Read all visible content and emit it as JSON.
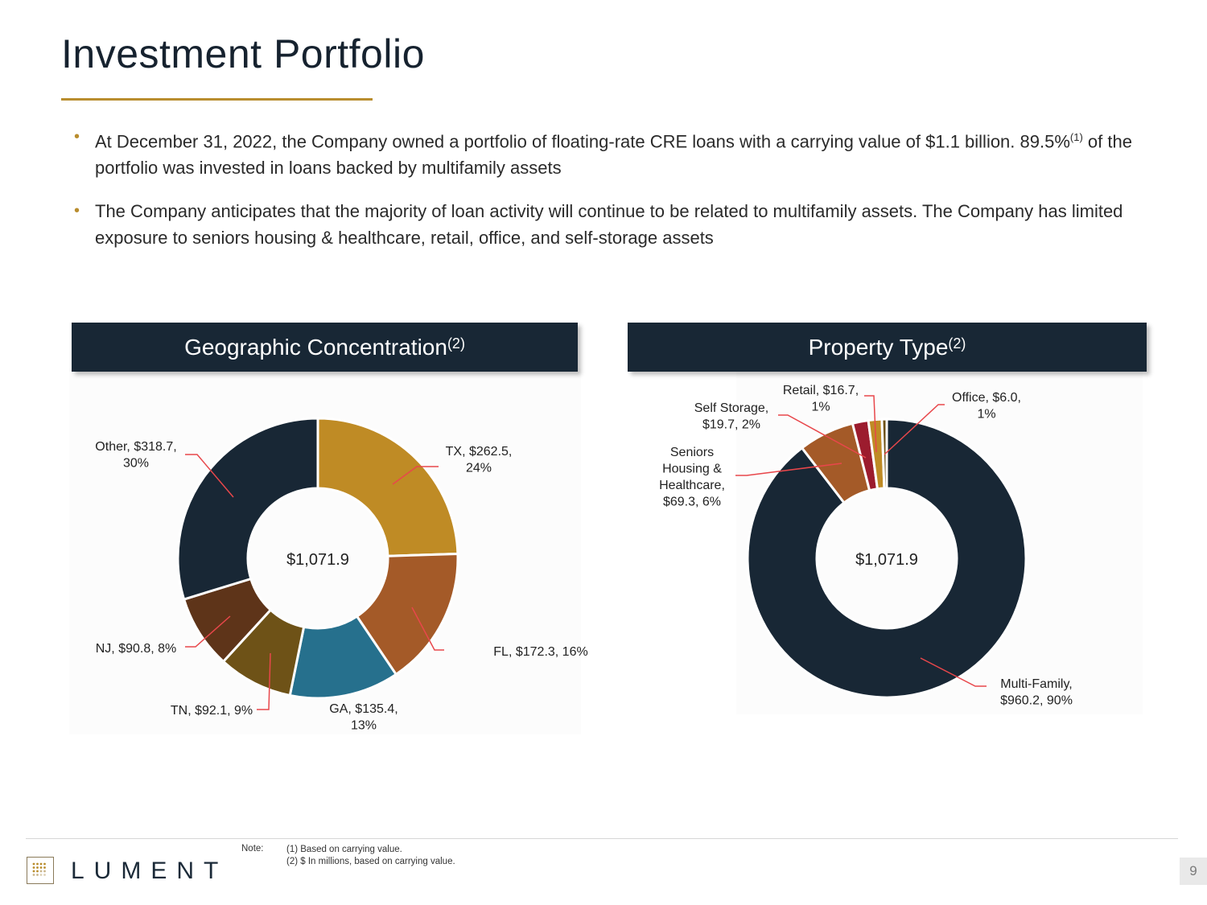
{
  "page": {
    "title": "Investment Portfolio",
    "bullets": [
      {
        "before": "At December 31, 2022, the Company owned a portfolio of floating-rate CRE loans with a carrying value of $1.1 billion. 89.5%",
        "sup": "(1)",
        "after": " of the portfolio was invested in loans backed by multifamily assets"
      },
      {
        "text": "The Company anticipates that the majority of loan activity will continue to be related to multifamily assets. The Company has limited exposure to seniors housing & healthcare, retail, office, and self-storage assets"
      }
    ],
    "page_number": "9"
  },
  "panels": {
    "geo": {
      "title": "Geographic Concentration",
      "sup": "(2)"
    },
    "prop": {
      "title": "Property Type",
      "sup": "(2)"
    }
  },
  "footer": {
    "logo": "LUMENT",
    "note_label": "Note:",
    "notes": [
      "(1) Based on carrying value.",
      "(2) $ In millions, based on carrying value."
    ]
  },
  "colors": {
    "navy": "#182735",
    "gold": "#b98d2e",
    "leader": "#e8474b"
  },
  "chart_data": [
    {
      "type": "pie",
      "variant": "donut",
      "title": "Geographic Concentration",
      "center_label": "$1,071.9",
      "units": "$ in millions",
      "slices": [
        {
          "label": "TX",
          "value": 262.5,
          "percent": 24,
          "display": "TX, $262.5, 24%",
          "color": "#bf8b25"
        },
        {
          "label": "FL",
          "value": 172.3,
          "percent": 16,
          "display": "FL, $172.3, 16%",
          "color": "#a45a28"
        },
        {
          "label": "GA",
          "value": 135.4,
          "percent": 13,
          "display": "GA, $135.4, 13%",
          "color": "#26708d"
        },
        {
          "label": "TN",
          "value": 92.1,
          "percent": 9,
          "display": "TN, $92.1, 9%",
          "color": "#6e5217"
        },
        {
          "label": "NJ",
          "value": 90.8,
          "percent": 8,
          "display": "NJ, $90.8, 8%",
          "color": "#5e3419"
        },
        {
          "label": "Other",
          "value": 318.7,
          "percent": 30,
          "display": "Other, $318.7, 30%",
          "color": "#182735"
        }
      ]
    },
    {
      "type": "pie",
      "variant": "donut",
      "title": "Property Type",
      "center_label": "$1,071.9",
      "units": "$ in millions",
      "slices": [
        {
          "label": "Multi-Family",
          "value": 960.2,
          "percent": 90,
          "display": "Multi-Family, $960.2, 90%",
          "color": "#182735"
        },
        {
          "label": "Seniors Housing & Healthcare",
          "value": 69.3,
          "percent": 6,
          "display": "Seniors Housing & Healthcare, $69.3, 6%",
          "color": "#a45a28"
        },
        {
          "label": "Self Storage",
          "value": 19.7,
          "percent": 2,
          "display": "Self Storage, $19.7, 2%",
          "color": "#9c1c2e"
        },
        {
          "label": "Retail",
          "value": 16.7,
          "percent": 1,
          "display": "Retail, $16.7, 1%",
          "color": "#bf8b25"
        },
        {
          "label": "Office",
          "value": 6.0,
          "percent": 1,
          "display": "Office, $6.0, 1%",
          "color": "#6e5217"
        }
      ]
    }
  ]
}
